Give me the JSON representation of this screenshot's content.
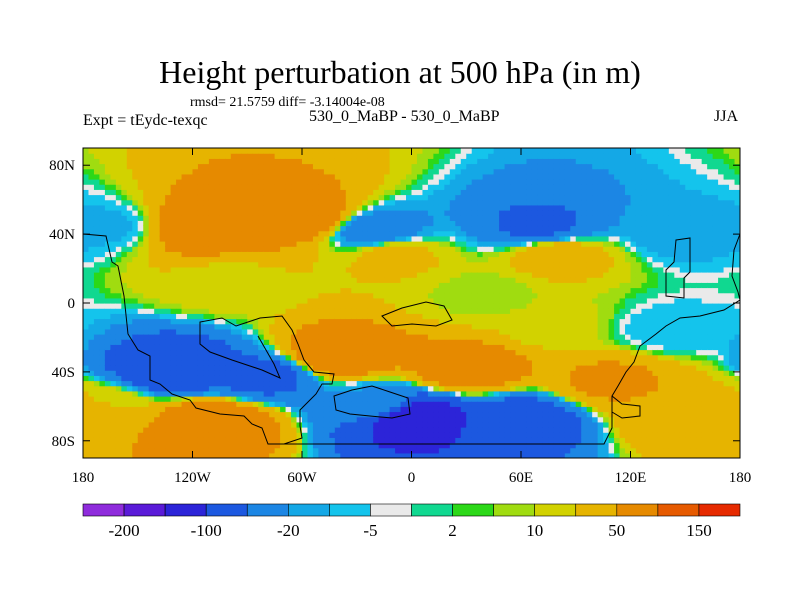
{
  "chart_data": {
    "type": "heatmap",
    "title": "Height perturbation at 500 hPa (in m)",
    "stats": "rmsd= 21.5759  diff= -3.14004e-08",
    "expt_label": "Expt = tEydc-texqc",
    "subtitle": "530_0_MaBP - 530_0_MaBP",
    "season": "JJA",
    "xlim": [
      -180,
      180
    ],
    "ylim": [
      -90,
      90
    ],
    "x_ticks": [
      {
        "value": -180,
        "label": "180"
      },
      {
        "value": -120,
        "label": "120W"
      },
      {
        "value": -60,
        "label": "60W"
      },
      {
        "value": 0,
        "label": "0"
      },
      {
        "value": 60,
        "label": "60E"
      },
      {
        "value": 120,
        "label": "120E"
      },
      {
        "value": 180,
        "label": "180"
      }
    ],
    "y_ticks": [
      {
        "value": 80,
        "label": "80N"
      },
      {
        "value": 40,
        "label": "40N"
      },
      {
        "value": 0,
        "label": "0"
      },
      {
        "value": -40,
        "label": "40S"
      },
      {
        "value": -80,
        "label": "80S"
      }
    ],
    "levels": [
      -250,
      -200,
      -150,
      -100,
      -50,
      -20,
      -10,
      -5,
      -2,
      2,
      5,
      10,
      20,
      50,
      100,
      150,
      200
    ],
    "colors": [
      "#8f2cdc",
      "#5a1ad8",
      "#2c24d8",
      "#1c58e0",
      "#1c86e4",
      "#14a8e6",
      "#14c4ec",
      "#eaeaea",
      "#10d890",
      "#2cd818",
      "#a0dc10",
      "#d2d200",
      "#e6b400",
      "#e68a00",
      "#e65a00",
      "#e62a00"
    ],
    "colorbar_labels": [
      {
        "value": -200,
        "label": "-200"
      },
      {
        "value": -100,
        "label": "-100"
      },
      {
        "value": -20,
        "label": "-20"
      },
      {
        "value": -5,
        "label": "-5"
      },
      {
        "value": 2,
        "label": "2"
      },
      {
        "value": 10,
        "label": "10"
      },
      {
        "value": 50,
        "label": "50"
      },
      {
        "value": 150,
        "label": "150"
      }
    ],
    "field_features_m": [
      {
        "lon": -110,
        "lat": 45,
        "value": 90
      },
      {
        "lon": -60,
        "lat": 50,
        "value": 80
      },
      {
        "lon": -170,
        "lat": 45,
        "value": -12
      },
      {
        "lon": -20,
        "lat": 42,
        "value": -35
      },
      {
        "lon": 70,
        "lat": 45,
        "value": -55
      },
      {
        "lon": 150,
        "lat": 42,
        "value": -15
      },
      {
        "lon": -10,
        "lat": 28,
        "value": 25
      },
      {
        "lon": 80,
        "lat": 28,
        "value": 30
      },
      {
        "lon": -100,
        "lat": 12,
        "value": 15
      },
      {
        "lon": 40,
        "lat": 5,
        "value": 8
      },
      {
        "lon": 80,
        "lat": -12,
        "value": 12
      },
      {
        "lon": 140,
        "lat": -15,
        "value": -8
      },
      {
        "lon": -130,
        "lat": -38,
        "value": -90
      },
      {
        "lon": -80,
        "lat": -42,
        "value": -60
      },
      {
        "lon": -40,
        "lat": -30,
        "value": 85
      },
      {
        "lon": 30,
        "lat": -38,
        "value": 75
      },
      {
        "lon": 110,
        "lat": -45,
        "value": 55
      },
      {
        "lon": -110,
        "lat": -70,
        "value": 95
      },
      {
        "lon": -170,
        "lat": -60,
        "value": 20
      },
      {
        "lon": 0,
        "lat": -66,
        "value": -140
      },
      {
        "lon": 60,
        "lat": -68,
        "value": -75
      },
      {
        "lon": 150,
        "lat": -65,
        "value": 45
      },
      {
        "lon": -20,
        "lat": -58,
        "value": -20
      }
    ]
  }
}
